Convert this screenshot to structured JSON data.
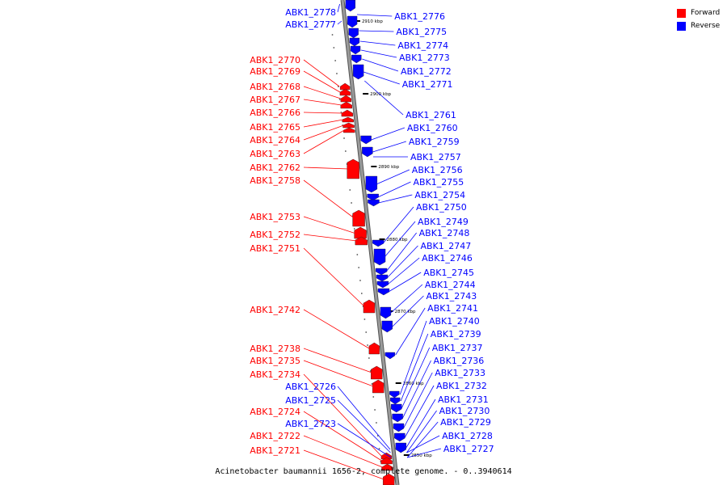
{
  "colors": {
    "forward": "#ff0000",
    "reverse": "#0000ff",
    "backbone": "#9a9a9a"
  },
  "legend": [
    {
      "label": "Forward",
      "color": "#ff0000"
    },
    {
      "label": "Reverse",
      "color": "#0000ff"
    }
  ],
  "footer": "Acinetobacter baumannii 1656-2, complete genome. - 0..3940614",
  "ticks": [
    {
      "label": "2910 kbp"
    },
    {
      "label": "2900 kbp"
    },
    {
      "label": "2890 kbp"
    },
    {
      "label": "2880 kbp"
    },
    {
      "label": "2870 kbp"
    },
    {
      "label": "2860 kbp"
    },
    {
      "label": "2850 kbp"
    }
  ],
  "genes_forward": [
    "ABK1_2770",
    "ABK1_2769",
    "ABK1_2768",
    "ABK1_2767",
    "ABK1_2766",
    "ABK1_2765",
    "ABK1_2764",
    "ABK1_2763",
    "ABK1_2762",
    "ABK1_2758",
    "ABK1_2753",
    "ABK1_2752",
    "ABK1_2751",
    "ABK1_2742",
    "ABK1_2738",
    "ABK1_2735",
    "ABK1_2734",
    "ABK1_2724",
    "ABK1_2722",
    "ABK1_2721"
  ],
  "genes_reverse": [
    "ABK1_2778",
    "ABK1_2777",
    "ABK1_2776",
    "ABK1_2775",
    "ABK1_2774",
    "ABK1_2773",
    "ABK1_2772",
    "ABK1_2771",
    "ABK1_2761",
    "ABK1_2760",
    "ABK1_2759",
    "ABK1_2757",
    "ABK1_2756",
    "ABK1_2755",
    "ABK1_2754",
    "ABK1_2750",
    "ABK1_2749",
    "ABK1_2748",
    "ABK1_2747",
    "ABK1_2746",
    "ABK1_2745",
    "ABK1_2744",
    "ABK1_2743",
    "ABK1_2741",
    "ABK1_2740",
    "ABK1_2739",
    "ABK1_2737",
    "ABK1_2736",
    "ABK1_2733",
    "ABK1_2732",
    "ABK1_2731",
    "ABK1_2730",
    "ABK1_2729",
    "ABK1_2728",
    "ABK1_2727",
    "ABK1_2726",
    "ABK1_2725",
    "ABK1_2723"
  ]
}
